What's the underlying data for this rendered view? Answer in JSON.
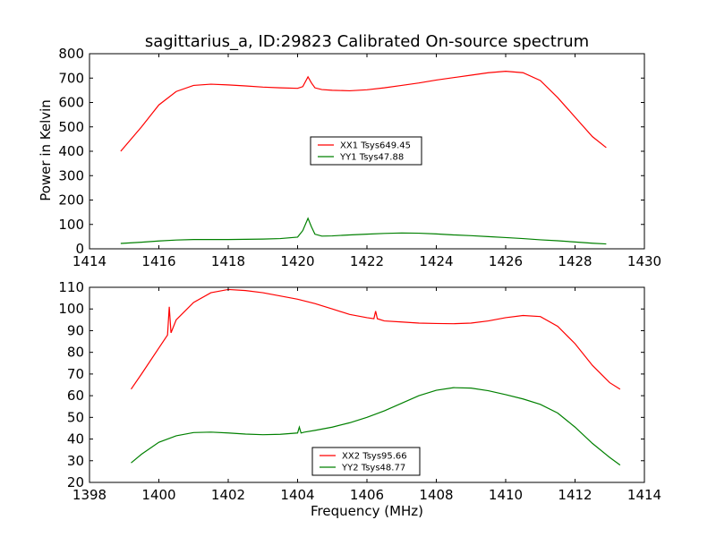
{
  "chart_data": [
    {
      "type": "line",
      "title": "sagittarius_a, ID:29823 Calibrated On-source spectrum",
      "xlabel": "",
      "ylabel": "Power in Kelvin",
      "xlim": [
        1414,
        1430
      ],
      "ylim": [
        0,
        800
      ],
      "xticks": [
        1414,
        1416,
        1418,
        1420,
        1422,
        1424,
        1426,
        1428,
        1430
      ],
      "yticks": [
        0,
        100,
        200,
        300,
        400,
        500,
        600,
        700,
        800
      ],
      "grid": false,
      "legend_position": "center",
      "series": [
        {
          "name": "XX1 Tsys649.45",
          "color": "#ff0000",
          "x": [
            1414.9,
            1415.5,
            1416.0,
            1416.5,
            1417.0,
            1417.5,
            1418.0,
            1418.5,
            1419.0,
            1419.5,
            1420.0,
            1420.15,
            1420.3,
            1420.4,
            1420.5,
            1420.7,
            1421.0,
            1421.5,
            1422.0,
            1422.5,
            1423.0,
            1423.5,
            1424.0,
            1424.5,
            1425.0,
            1425.5,
            1426.0,
            1426.5,
            1427.0,
            1427.5,
            1428.0,
            1428.5,
            1428.9
          ],
          "y": [
            400,
            500,
            590,
            645,
            670,
            675,
            672,
            668,
            663,
            660,
            658,
            665,
            705,
            680,
            660,
            653,
            650,
            648,
            652,
            660,
            670,
            680,
            692,
            702,
            712,
            722,
            728,
            722,
            690,
            620,
            540,
            460,
            415
          ]
        },
        {
          "name": "YY1 Tsys47.88",
          "color": "#008000",
          "x": [
            1414.9,
            1415.5,
            1416.0,
            1416.5,
            1417.0,
            1418.0,
            1419.0,
            1419.5,
            1420.0,
            1420.15,
            1420.3,
            1420.4,
            1420.5,
            1420.7,
            1421.0,
            1421.5,
            1422.0,
            1422.5,
            1423.0,
            1423.5,
            1424.0,
            1424.5,
            1425.0,
            1425.5,
            1426.0,
            1426.5,
            1427.0,
            1427.5,
            1428.0,
            1428.5,
            1428.9
          ],
          "y": [
            22,
            27,
            32,
            36,
            38,
            38,
            40,
            42,
            48,
            75,
            125,
            90,
            60,
            52,
            53,
            57,
            60,
            63,
            65,
            64,
            61,
            57,
            54,
            50,
            46,
            42,
            37,
            33,
            28,
            23,
            20
          ]
        }
      ]
    },
    {
      "type": "line",
      "title": "",
      "xlabel": "Frequency (MHz)",
      "ylabel": "",
      "xlim": [
        1398,
        1414
      ],
      "ylim": [
        20,
        110
      ],
      "xticks": [
        1398,
        1400,
        1402,
        1404,
        1406,
        1408,
        1410,
        1412,
        1414
      ],
      "yticks": [
        20,
        30,
        40,
        50,
        60,
        70,
        80,
        90,
        100,
        110
      ],
      "grid": false,
      "legend_position": "lower center",
      "series": [
        {
          "name": "XX2 Tsys95.66",
          "color": "#ff0000",
          "x": [
            1399.2,
            1399.5,
            1400.0,
            1400.25,
            1400.3,
            1400.35,
            1400.5,
            1401.0,
            1401.5,
            1402.0,
            1402.5,
            1403.0,
            1403.5,
            1404.0,
            1404.5,
            1405.0,
            1405.5,
            1406.0,
            1406.2,
            1406.25,
            1406.3,
            1406.5,
            1407.0,
            1407.5,
            1408.0,
            1408.5,
            1409.0,
            1409.5,
            1410.0,
            1410.5,
            1411.0,
            1411.5,
            1412.0,
            1412.5,
            1413.0,
            1413.3
          ],
          "y": [
            63,
            70,
            82,
            88,
            101,
            89,
            95,
            103,
            107.5,
            109,
            108.5,
            107.5,
            106,
            104.5,
            102.5,
            100,
            97.5,
            96,
            95.5,
            99,
            95.5,
            94.5,
            94,
            93.5,
            93.3,
            93.2,
            93.5,
            94.5,
            96,
            97,
            96.5,
            92,
            84,
            74,
            66,
            63
          ]
        },
        {
          "name": "YY2 Tsys48.77",
          "color": "#008000",
          "x": [
            1399.2,
            1399.5,
            1400.0,
            1400.5,
            1401.0,
            1401.5,
            1402.0,
            1402.5,
            1403.0,
            1403.5,
            1404.0,
            1404.05,
            1404.1,
            1404.2,
            1404.5,
            1405.0,
            1405.5,
            1406.0,
            1406.5,
            1407.0,
            1407.5,
            1408.0,
            1408.5,
            1409.0,
            1409.5,
            1410.0,
            1410.5,
            1411.0,
            1411.5,
            1412.0,
            1412.5,
            1413.0,
            1413.3
          ],
          "y": [
            29,
            33,
            38.5,
            41.5,
            43,
            43.2,
            42.8,
            42.3,
            42,
            42.2,
            42.8,
            45.5,
            42.8,
            43.2,
            44,
            45.5,
            47.5,
            50,
            53,
            56.5,
            60,
            62.5,
            63.7,
            63.5,
            62.3,
            60.5,
            58.5,
            56,
            52,
            45.5,
            38,
            31.5,
            28
          ]
        }
      ]
    }
  ]
}
